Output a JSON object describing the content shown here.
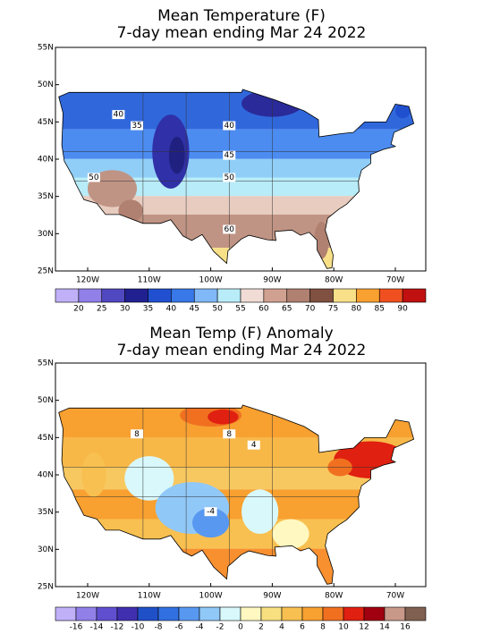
{
  "panels": [
    {
      "title": [
        "Mean Temperature (F)",
        "7-day mean ending Mar 24 2022"
      ],
      "lat_labels": [
        "55N",
        "50N",
        "45N",
        "40N",
        "35N",
        "30N",
        "25N"
      ],
      "lon_labels": [
        "120W",
        "110W",
        "100W",
        "90W",
        "80W",
        "70W"
      ],
      "contour_labels": [
        "40",
        "35",
        "40",
        "45",
        "50",
        "50",
        "60"
      ],
      "colorbar": {
        "labels": [
          20,
          25,
          30,
          35,
          40,
          45,
          50,
          55,
          60,
          65,
          70,
          75,
          80,
          85,
          90
        ],
        "colors": [
          "#c0b0f8",
          "#9080e8",
          "#5048c0",
          "#202090",
          "#2050d0",
          "#3878e8",
          "#80b8f8",
          "#b8ecf8",
          "#f0dcd4",
          "#d0a090",
          "#b08070",
          "#805040",
          "#f8e088",
          "#f8a030",
          "#f05020",
          "#c01010"
        ]
      }
    },
    {
      "title": [
        "Mean Temp (F) Anomaly",
        "7-day mean ending Mar 24 2022"
      ],
      "lat_labels": [
        "55N",
        "50N",
        "45N",
        "40N",
        "35N",
        "30N",
        "25N"
      ],
      "lon_labels": [
        "120W",
        "110W",
        "100W",
        "90W",
        "80W",
        "70W"
      ],
      "contour_labels": [
        "8",
        "8",
        "4",
        "-4"
      ],
      "colorbar": {
        "labels": [
          -16,
          -14,
          -12,
          -10,
          -8,
          -6,
          -4,
          -2,
          0,
          2,
          4,
          6,
          8,
          10,
          12,
          14,
          16
        ],
        "colors": [
          "#c0b0f8",
          "#9080e8",
          "#6050d0",
          "#4030b0",
          "#2050c8",
          "#3070e0",
          "#5898f0",
          "#90c8f8",
          "#d8f8fc",
          "#fff8c0",
          "#f8e080",
          "#f8c050",
          "#f8a030",
          "#f07020",
          "#e02010",
          "#a00010",
          "#c89888",
          "#806050"
        ]
      }
    }
  ]
}
